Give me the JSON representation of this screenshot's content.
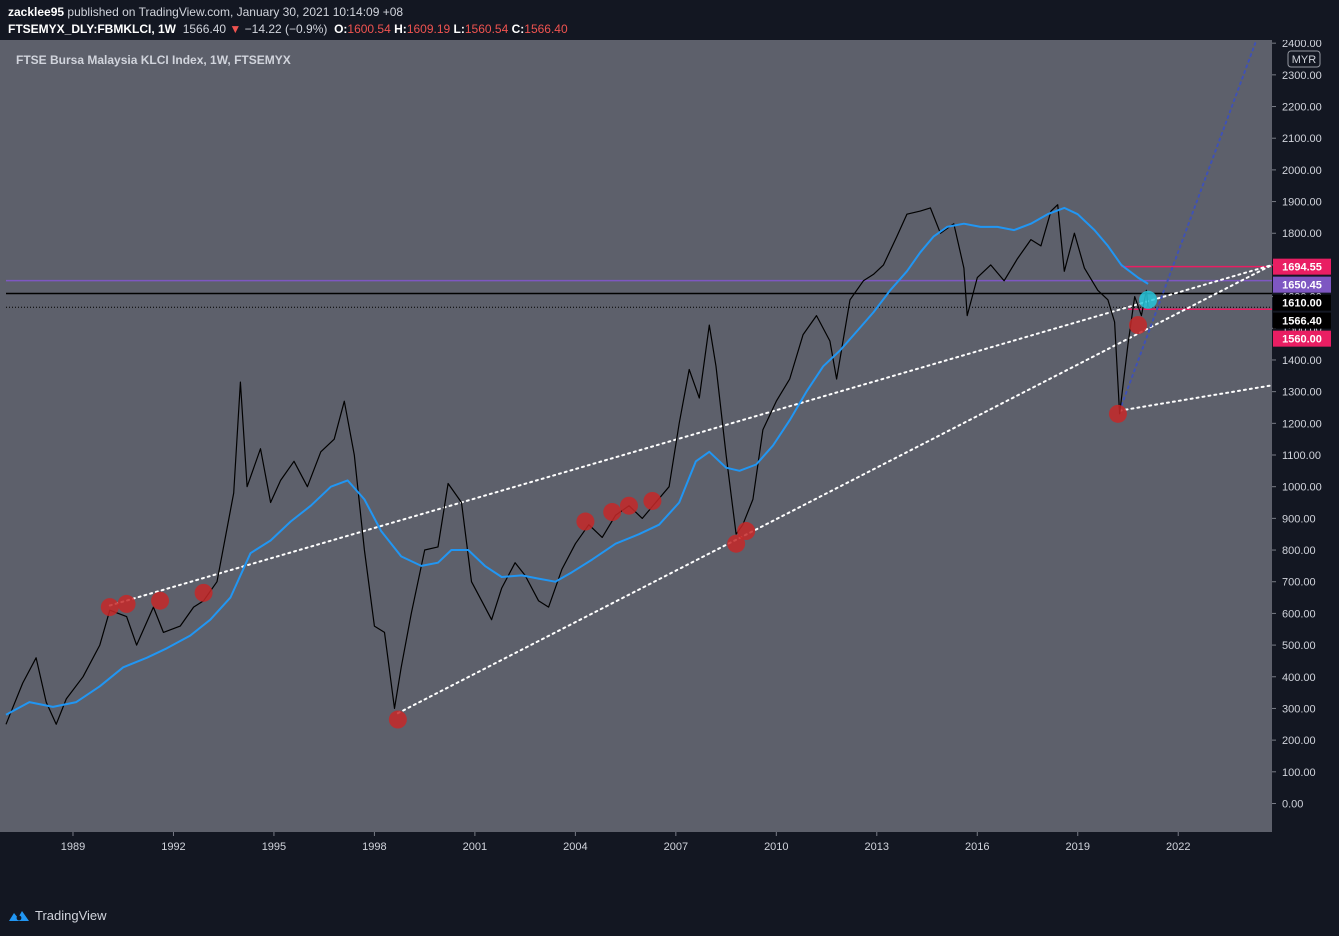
{
  "header": {
    "author": "zacklee95",
    "publish_text": "published on TradingView.com, January 30, 2021 10:14:09 +08",
    "symbol": "FTSEMYX_DLY:FBMKLCI, 1W",
    "last": "1566.40",
    "change_arrow": "▼",
    "change": "−14.22 (−0.9%)",
    "o_label": "O:",
    "o_value": "1600.54",
    "h_label": "H:",
    "h_value": "1609.19",
    "l_label": "L:",
    "l_value": "1560.54",
    "c_label": "C:",
    "c_value": "1566.40"
  },
  "chart_title": "FTSE Bursa Malaysia KLCI Index, 1W, FTSEMYX",
  "currency_badge": "MYR",
  "footer": {
    "brand": "TradingView",
    "logo_icon": "tradingview-logo-icon"
  },
  "colors": {
    "background": "#5d606b",
    "page": "#131722",
    "axis_text": "#d1d4dc",
    "price_line": "#000000",
    "ma_line": "#2196f3",
    "marker_red": "#c62828",
    "marker_cyan": "#26c6da",
    "purple_level": "#7e57c2",
    "red_level": "#e91e63"
  },
  "chart_data": {
    "type": "line",
    "x_ticks": [
      "1989",
      "1992",
      "1995",
      "1998",
      "2001",
      "2004",
      "2007",
      "2010",
      "2013",
      "2016",
      "2019",
      "2022"
    ],
    "x_range": [
      1987.0,
      2024.8
    ],
    "y_ticks": [
      "2400.00",
      "2300.00",
      "2200.00",
      "2100.00",
      "2000.00",
      "1900.00",
      "1800.00",
      "1700.00",
      "1600.00",
      "1500.00",
      "1400.00",
      "1300.00",
      "1200.00",
      "1100.00",
      "1000.00",
      "900.00",
      "800.00",
      "700.00",
      "600.00",
      "500.00",
      "400.00",
      "300.00",
      "200.00",
      "100.00",
      "0.00"
    ],
    "y_range": [
      -90,
      2410
    ],
    "series": [
      {
        "name": "FBMKLCI",
        "points": [
          [
            1987.0,
            250
          ],
          [
            1987.5,
            380
          ],
          [
            1987.9,
            460
          ],
          [
            1988.2,
            320
          ],
          [
            1988.5,
            250
          ],
          [
            1988.8,
            330
          ],
          [
            1989.3,
            400
          ],
          [
            1989.8,
            500
          ],
          [
            1990.1,
            610
          ],
          [
            1990.6,
            590
          ],
          [
            1990.9,
            500
          ],
          [
            1991.4,
            620
          ],
          [
            1991.7,
            540
          ],
          [
            1992.2,
            560
          ],
          [
            1992.6,
            620
          ],
          [
            1992.9,
            640
          ],
          [
            1993.3,
            700
          ],
          [
            1993.8,
            980
          ],
          [
            1994.0,
            1330
          ],
          [
            1994.2,
            1000
          ],
          [
            1994.6,
            1120
          ],
          [
            1994.9,
            950
          ],
          [
            1995.2,
            1020
          ],
          [
            1995.6,
            1080
          ],
          [
            1996.0,
            1000
          ],
          [
            1996.4,
            1110
          ],
          [
            1996.8,
            1150
          ],
          [
            1997.1,
            1270
          ],
          [
            1997.4,
            1100
          ],
          [
            1997.7,
            800
          ],
          [
            1998.0,
            560
          ],
          [
            1998.3,
            540
          ],
          [
            1998.6,
            300
          ],
          [
            1998.8,
            430
          ],
          [
            1999.1,
            600
          ],
          [
            1999.5,
            800
          ],
          [
            1999.9,
            810
          ],
          [
            2000.2,
            1010
          ],
          [
            2000.6,
            950
          ],
          [
            2000.9,
            700
          ],
          [
            2001.2,
            640
          ],
          [
            2001.5,
            580
          ],
          [
            2001.8,
            680
          ],
          [
            2002.2,
            760
          ],
          [
            2002.5,
            720
          ],
          [
            2002.9,
            640
          ],
          [
            2003.2,
            620
          ],
          [
            2003.6,
            740
          ],
          [
            2004.0,
            820
          ],
          [
            2004.4,
            880
          ],
          [
            2004.8,
            840
          ],
          [
            2005.2,
            910
          ],
          [
            2005.6,
            940
          ],
          [
            2006.0,
            900
          ],
          [
            2006.4,
            950
          ],
          [
            2006.8,
            1000
          ],
          [
            2007.1,
            1200
          ],
          [
            2007.4,
            1370
          ],
          [
            2007.7,
            1280
          ],
          [
            2008.0,
            1510
          ],
          [
            2008.2,
            1380
          ],
          [
            2008.5,
            1100
          ],
          [
            2008.8,
            850
          ],
          [
            2009.0,
            880
          ],
          [
            2009.3,
            960
          ],
          [
            2009.6,
            1180
          ],
          [
            2010.0,
            1270
          ],
          [
            2010.4,
            1340
          ],
          [
            2010.8,
            1480
          ],
          [
            2011.2,
            1540
          ],
          [
            2011.6,
            1460
          ],
          [
            2011.8,
            1340
          ],
          [
            2012.2,
            1590
          ],
          [
            2012.6,
            1650
          ],
          [
            2012.9,
            1670
          ],
          [
            2013.2,
            1700
          ],
          [
            2013.6,
            1790
          ],
          [
            2013.9,
            1860
          ],
          [
            2014.3,
            1870
          ],
          [
            2014.6,
            1880
          ],
          [
            2014.9,
            1800
          ],
          [
            2015.3,
            1830
          ],
          [
            2015.6,
            1690
          ],
          [
            2015.7,
            1540
          ],
          [
            2016.0,
            1660
          ],
          [
            2016.4,
            1700
          ],
          [
            2016.8,
            1650
          ],
          [
            2017.2,
            1720
          ],
          [
            2017.6,
            1780
          ],
          [
            2017.9,
            1760
          ],
          [
            2018.2,
            1870
          ],
          [
            2018.4,
            1890
          ],
          [
            2018.6,
            1680
          ],
          [
            2018.9,
            1800
          ],
          [
            2019.2,
            1690
          ],
          [
            2019.6,
            1620
          ],
          [
            2019.9,
            1590
          ],
          [
            2020.1,
            1520
          ],
          [
            2020.25,
            1230
          ],
          [
            2020.5,
            1450
          ],
          [
            2020.7,
            1600
          ],
          [
            2020.9,
            1540
          ],
          [
            2021.05,
            1620
          ],
          [
            2021.1,
            1566
          ]
        ]
      },
      {
        "name": "MA",
        "points": [
          [
            1987.0,
            280
          ],
          [
            1987.7,
            320
          ],
          [
            1988.4,
            305
          ],
          [
            1989.1,
            320
          ],
          [
            1989.8,
            370
          ],
          [
            1990.5,
            430
          ],
          [
            1991.2,
            460
          ],
          [
            1991.8,
            490
          ],
          [
            1992.5,
            530
          ],
          [
            1993.1,
            580
          ],
          [
            1993.7,
            650
          ],
          [
            1994.3,
            790
          ],
          [
            1994.9,
            830
          ],
          [
            1995.5,
            890
          ],
          [
            1996.1,
            940
          ],
          [
            1996.7,
            1000
          ],
          [
            1997.2,
            1020
          ],
          [
            1997.7,
            960
          ],
          [
            1998.2,
            860
          ],
          [
            1998.8,
            780
          ],
          [
            1999.4,
            750
          ],
          [
            1999.9,
            760
          ],
          [
            2000.3,
            800
          ],
          [
            2000.8,
            800
          ],
          [
            2001.3,
            750
          ],
          [
            2001.8,
            715
          ],
          [
            2002.4,
            720
          ],
          [
            2002.9,
            710
          ],
          [
            2003.4,
            700
          ],
          [
            2003.9,
            730
          ],
          [
            2004.5,
            770
          ],
          [
            2005.2,
            820
          ],
          [
            2005.9,
            850
          ],
          [
            2006.5,
            880
          ],
          [
            2007.1,
            950
          ],
          [
            2007.6,
            1080
          ],
          [
            2008.0,
            1110
          ],
          [
            2008.5,
            1060
          ],
          [
            2008.9,
            1050
          ],
          [
            2009.4,
            1070
          ],
          [
            2009.9,
            1130
          ],
          [
            2010.4,
            1210
          ],
          [
            2010.9,
            1300
          ],
          [
            2011.4,
            1380
          ],
          [
            2011.9,
            1430
          ],
          [
            2012.4,
            1490
          ],
          [
            2012.9,
            1550
          ],
          [
            2013.4,
            1620
          ],
          [
            2013.9,
            1680
          ],
          [
            2014.3,
            1740
          ],
          [
            2014.7,
            1790
          ],
          [
            2015.1,
            1820
          ],
          [
            2015.6,
            1830
          ],
          [
            2016.1,
            1820
          ],
          [
            2016.6,
            1820
          ],
          [
            2017.1,
            1810
          ],
          [
            2017.6,
            1830
          ],
          [
            2018.1,
            1860
          ],
          [
            2018.6,
            1880
          ],
          [
            2019.0,
            1860
          ],
          [
            2019.5,
            1810
          ],
          [
            2019.9,
            1760
          ],
          [
            2020.3,
            1700
          ],
          [
            2020.8,
            1660
          ],
          [
            2021.1,
            1640
          ]
        ]
      }
    ],
    "trend_lines": [
      {
        "style": "dotted",
        "color": "#ffffff",
        "from": [
          1990.1,
          625
        ],
        "to": [
          2024.8,
          1700
        ]
      },
      {
        "style": "dotted",
        "color": "#ffffff",
        "from": [
          1998.7,
          285
        ],
        "to": [
          2024.8,
          1700
        ]
      },
      {
        "style": "dotted",
        "color": "#ffffff",
        "from": [
          2020.25,
          1240
        ],
        "to": [
          2024.8,
          1320
        ]
      },
      {
        "style": "dotted",
        "color": "#3f51b5",
        "from": [
          2020.25,
          1240
        ],
        "to": [
          2024.3,
          2400
        ]
      }
    ],
    "horizontal_levels": [
      {
        "value": 1694.55,
        "label": "1694.55",
        "color": "#e91e63",
        "start": 2020.3
      },
      {
        "value": 1650.45,
        "label": "1650.45",
        "color": "#7e57c2",
        "start": 1987.0
      },
      {
        "value": 1610.0,
        "label": "1610.00",
        "color": "#000000",
        "start": 1987.0
      },
      {
        "value": 1566.4,
        "label": "1566.40",
        "color": "#000000",
        "start": 1987.0,
        "dotted": true
      },
      {
        "value": 1560.0,
        "label": "1560.00",
        "color": "#e91e63",
        "start": 2020.5
      }
    ],
    "markers": [
      {
        "x": 1990.1,
        "y": 620,
        "color": "red"
      },
      {
        "x": 1990.6,
        "y": 630,
        "color": "red"
      },
      {
        "x": 1991.6,
        "y": 640,
        "color": "red"
      },
      {
        "x": 1992.9,
        "y": 665,
        "color": "red"
      },
      {
        "x": 1998.7,
        "y": 265,
        "color": "red"
      },
      {
        "x": 2004.3,
        "y": 890,
        "color": "red"
      },
      {
        "x": 2005.1,
        "y": 920,
        "color": "red"
      },
      {
        "x": 2005.6,
        "y": 940,
        "color": "red"
      },
      {
        "x": 2006.3,
        "y": 955,
        "color": "red"
      },
      {
        "x": 2008.8,
        "y": 820,
        "color": "red"
      },
      {
        "x": 2009.1,
        "y": 860,
        "color": "red"
      },
      {
        "x": 2020.2,
        "y": 1230,
        "color": "red"
      },
      {
        "x": 2020.8,
        "y": 1510,
        "color": "red"
      },
      {
        "x": 2021.1,
        "y": 1590,
        "color": "cyan"
      }
    ]
  }
}
